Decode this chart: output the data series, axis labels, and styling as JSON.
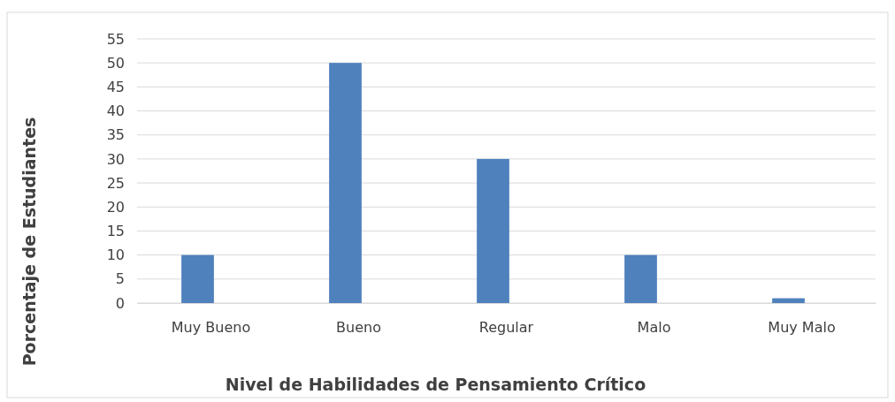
{
  "chart_data": {
    "type": "bar",
    "xlabel": "Nivel de Habilidades de Pensamiento Crítico",
    "ylabel": "Porcentaje de Estudiantes",
    "categories": [
      "Muy Bueno",
      "Bueno",
      "Regular",
      "Malo",
      "Muy Malo"
    ],
    "values": [
      10,
      50,
      30,
      10,
      1
    ],
    "color": "#4f81bd",
    "ylim": [
      0,
      55
    ],
    "yticks": [
      0,
      5,
      10,
      15,
      20,
      25,
      30,
      35,
      40,
      45,
      50,
      55
    ],
    "grid": "y"
  }
}
